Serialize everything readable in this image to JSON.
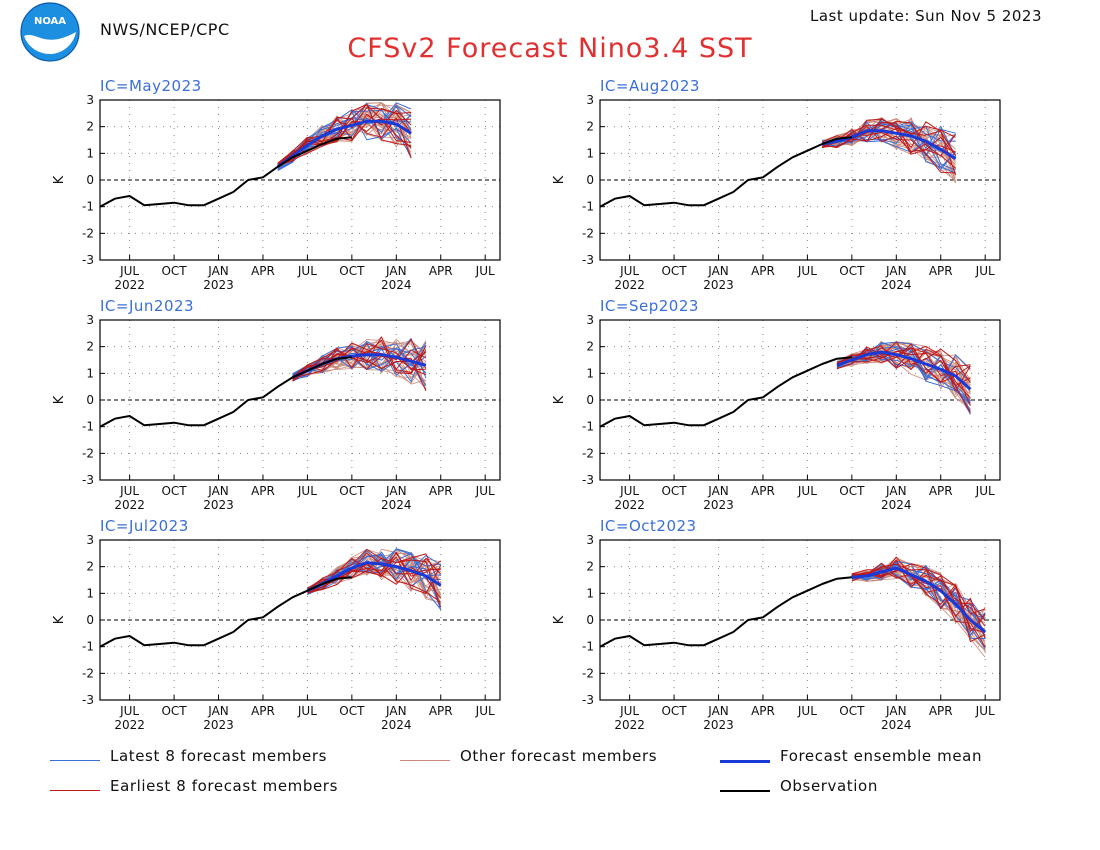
{
  "header": {
    "agency": "NWS/NCEP/CPC",
    "updated": "Last update: Sun Nov 5 2023",
    "title": "CFSv2 Forecast Nino3.4 SST",
    "logo_text": "NOAA"
  },
  "legend": [
    {
      "label": "Latest 8 forecast members",
      "color": "#3a6fd8"
    },
    {
      "label": "Other forecast members",
      "color": "#c98a7a"
    },
    {
      "label": "Forecast ensemble mean",
      "color": "#1a3ad8"
    },
    {
      "label": "Earliest 8 forecast members",
      "color": "#c01818"
    },
    {
      "label": "Observation",
      "color": "#000000"
    }
  ],
  "colors": {
    "title": "#e03030",
    "panel_label": "#3a6fd8",
    "latest": "#3a6fd8",
    "other": "#c98a7a",
    "mean": "#1a3ad8",
    "earliest": "#c01818",
    "observation": "#000000"
  },
  "chart_data": [
    {
      "type": "line",
      "panel_label": "IC=May2023",
      "ylabel": "K",
      "ylim": [
        -3,
        3
      ],
      "y_ticks": [
        "3",
        "2",
        "1",
        "0",
        "-1",
        "-2",
        "-3"
      ],
      "x_ticks": [
        {
          "month": "JUL",
          "year": "2022"
        },
        {
          "month": "OCT",
          "year": ""
        },
        {
          "month": "JAN",
          "year": "2023"
        },
        {
          "month": "APR",
          "year": ""
        },
        {
          "month": "JUL",
          "year": ""
        },
        {
          "month": "OCT",
          "year": ""
        },
        {
          "month": "JAN",
          "year": "2024"
        },
        {
          "month": "APR",
          "year": ""
        },
        {
          "month": "JUL",
          "year": ""
        }
      ],
      "xlim": [
        "2022-05",
        "2024-08"
      ],
      "grid": true,
      "observation": {
        "x": [
          "2022-05",
          "2022-06",
          "2022-07",
          "2022-08",
          "2022-09",
          "2022-10",
          "2022-11",
          "2022-12",
          "2023-01",
          "2023-02",
          "2023-03",
          "2023-04",
          "2023-05",
          "2023-06",
          "2023-07",
          "2023-08",
          "2023-09",
          "2023-10"
        ],
        "y": [
          -1.0,
          -0.7,
          -0.6,
          -0.95,
          -0.9,
          -0.85,
          -0.95,
          -0.95,
          -0.7,
          -0.45,
          0.0,
          0.1,
          0.5,
          0.85,
          1.1,
          1.35,
          1.55,
          1.6
        ]
      },
      "ensemble_mean": {
        "x": [
          "2023-05",
          "2023-06",
          "2023-07",
          "2023-08",
          "2023-09",
          "2023-10",
          "2023-11",
          "2023-12",
          "2024-01",
          "2024-02"
        ],
        "y": [
          0.5,
          0.9,
          1.3,
          1.65,
          1.9,
          2.05,
          2.2,
          2.2,
          2.1,
          1.75
        ]
      }
    },
    {
      "type": "line",
      "panel_label": "IC=Aug2023",
      "ylabel": "K",
      "ylim": [
        -3,
        3
      ],
      "y_ticks": [
        "3",
        "2",
        "1",
        "0",
        "-1",
        "-2",
        "-3"
      ],
      "x_ticks": [
        {
          "month": "JUL",
          "year": "2022"
        },
        {
          "month": "OCT",
          "year": ""
        },
        {
          "month": "JAN",
          "year": "2023"
        },
        {
          "month": "APR",
          "year": ""
        },
        {
          "month": "JUL",
          "year": ""
        },
        {
          "month": "OCT",
          "year": ""
        },
        {
          "month": "JAN",
          "year": "2024"
        },
        {
          "month": "APR",
          "year": ""
        },
        {
          "month": "JUL",
          "year": ""
        }
      ],
      "xlim": [
        "2022-05",
        "2024-08"
      ],
      "grid": true,
      "observation": {
        "x": [
          "2022-05",
          "2022-06",
          "2022-07",
          "2022-08",
          "2022-09",
          "2022-10",
          "2022-11",
          "2022-12",
          "2023-01",
          "2023-02",
          "2023-03",
          "2023-04",
          "2023-05",
          "2023-06",
          "2023-07",
          "2023-08",
          "2023-09",
          "2023-10"
        ],
        "y": [
          -1.0,
          -0.7,
          -0.6,
          -0.95,
          -0.9,
          -0.85,
          -0.95,
          -0.95,
          -0.7,
          -0.45,
          0.0,
          0.1,
          0.5,
          0.85,
          1.1,
          1.35,
          1.55,
          1.6
        ]
      },
      "ensemble_mean": {
        "x": [
          "2023-08",
          "2023-09",
          "2023-10",
          "2023-11",
          "2023-12",
          "2024-01",
          "2024-02",
          "2024-03",
          "2024-04",
          "2024-05"
        ],
        "y": [
          1.35,
          1.45,
          1.6,
          1.85,
          1.85,
          1.75,
          1.65,
          1.45,
          1.15,
          0.8
        ]
      }
    },
    {
      "type": "line",
      "panel_label": "IC=Jun2023",
      "ylabel": "K",
      "ylim": [
        -3,
        3
      ],
      "y_ticks": [
        "3",
        "2",
        "1",
        "0",
        "-1",
        "-2",
        "-3"
      ],
      "x_ticks": [
        {
          "month": "JUL",
          "year": "2022"
        },
        {
          "month": "OCT",
          "year": ""
        },
        {
          "month": "JAN",
          "year": "2023"
        },
        {
          "month": "APR",
          "year": ""
        },
        {
          "month": "JUL",
          "year": ""
        },
        {
          "month": "OCT",
          "year": ""
        },
        {
          "month": "JAN",
          "year": "2024"
        },
        {
          "month": "APR",
          "year": ""
        },
        {
          "month": "JUL",
          "year": ""
        }
      ],
      "xlim": [
        "2022-05",
        "2024-08"
      ],
      "grid": true,
      "observation": {
        "x": [
          "2022-05",
          "2022-06",
          "2022-07",
          "2022-08",
          "2022-09",
          "2022-10",
          "2022-11",
          "2022-12",
          "2023-01",
          "2023-02",
          "2023-03",
          "2023-04",
          "2023-05",
          "2023-06",
          "2023-07",
          "2023-08",
          "2023-09",
          "2023-10"
        ],
        "y": [
          -1.0,
          -0.7,
          -0.6,
          -0.95,
          -0.9,
          -0.85,
          -0.95,
          -0.95,
          -0.7,
          -0.45,
          0.0,
          0.1,
          0.5,
          0.85,
          1.1,
          1.35,
          1.55,
          1.6
        ]
      },
      "ensemble_mean": {
        "x": [
          "2023-06",
          "2023-07",
          "2023-08",
          "2023-09",
          "2023-10",
          "2023-11",
          "2023-12",
          "2024-01",
          "2024-02",
          "2024-03"
        ],
        "y": [
          0.85,
          1.1,
          1.35,
          1.55,
          1.65,
          1.7,
          1.7,
          1.6,
          1.45,
          1.3
        ]
      }
    },
    {
      "type": "line",
      "panel_label": "IC=Sep2023",
      "ylabel": "K",
      "ylim": [
        -3,
        3
      ],
      "y_ticks": [
        "3",
        "2",
        "1",
        "0",
        "-1",
        "-2",
        "-3"
      ],
      "x_ticks": [
        {
          "month": "JUL",
          "year": "2022"
        },
        {
          "month": "OCT",
          "year": ""
        },
        {
          "month": "JAN",
          "year": "2023"
        },
        {
          "month": "APR",
          "year": ""
        },
        {
          "month": "JUL",
          "year": ""
        },
        {
          "month": "OCT",
          "year": ""
        },
        {
          "month": "JAN",
          "year": "2024"
        },
        {
          "month": "APR",
          "year": ""
        },
        {
          "month": "JUL",
          "year": ""
        }
      ],
      "xlim": [
        "2022-05",
        "2024-08"
      ],
      "grid": true,
      "observation": {
        "x": [
          "2022-05",
          "2022-06",
          "2022-07",
          "2022-08",
          "2022-09",
          "2022-10",
          "2022-11",
          "2022-12",
          "2023-01",
          "2023-02",
          "2023-03",
          "2023-04",
          "2023-05",
          "2023-06",
          "2023-07",
          "2023-08",
          "2023-09",
          "2023-10"
        ],
        "y": [
          -1.0,
          -0.7,
          -0.6,
          -0.95,
          -0.9,
          -0.85,
          -0.95,
          -0.95,
          -0.7,
          -0.45,
          0.0,
          0.1,
          0.5,
          0.85,
          1.1,
          1.35,
          1.55,
          1.6
        ]
      },
      "ensemble_mean": {
        "x": [
          "2023-09",
          "2023-10",
          "2023-11",
          "2023-12",
          "2024-01",
          "2024-02",
          "2024-03",
          "2024-04",
          "2024-05",
          "2024-06"
        ],
        "y": [
          1.3,
          1.5,
          1.7,
          1.8,
          1.7,
          1.55,
          1.35,
          1.15,
          0.9,
          0.4
        ]
      }
    },
    {
      "type": "line",
      "panel_label": "IC=Jul2023",
      "ylabel": "K",
      "ylim": [
        -3,
        3
      ],
      "y_ticks": [
        "3",
        "2",
        "1",
        "0",
        "-1",
        "-2",
        "-3"
      ],
      "x_ticks": [
        {
          "month": "JUL",
          "year": "2022"
        },
        {
          "month": "OCT",
          "year": ""
        },
        {
          "month": "JAN",
          "year": "2023"
        },
        {
          "month": "APR",
          "year": ""
        },
        {
          "month": "JUL",
          "year": ""
        },
        {
          "month": "OCT",
          "year": ""
        },
        {
          "month": "JAN",
          "year": "2024"
        },
        {
          "month": "APR",
          "year": ""
        },
        {
          "month": "JUL",
          "year": ""
        }
      ],
      "xlim": [
        "2022-05",
        "2024-08"
      ],
      "grid": true,
      "observation": {
        "x": [
          "2022-05",
          "2022-06",
          "2022-07",
          "2022-08",
          "2022-09",
          "2022-10",
          "2022-11",
          "2022-12",
          "2023-01",
          "2023-02",
          "2023-03",
          "2023-04",
          "2023-05",
          "2023-06",
          "2023-07",
          "2023-08",
          "2023-09",
          "2023-10"
        ],
        "y": [
          -1.0,
          -0.7,
          -0.6,
          -0.95,
          -0.9,
          -0.85,
          -0.95,
          -0.95,
          -0.7,
          -0.45,
          0.0,
          0.1,
          0.5,
          0.85,
          1.1,
          1.35,
          1.55,
          1.6
        ]
      },
      "ensemble_mean": {
        "x": [
          "2023-07",
          "2023-08",
          "2023-09",
          "2023-10",
          "2023-11",
          "2023-12",
          "2024-01",
          "2024-02",
          "2024-03",
          "2024-04"
        ],
        "y": [
          1.1,
          1.35,
          1.65,
          1.95,
          2.15,
          2.1,
          2.0,
          1.85,
          1.65,
          1.3
        ]
      }
    },
    {
      "type": "line",
      "panel_label": "IC=Oct2023",
      "ylabel": "K",
      "ylim": [
        -3,
        3
      ],
      "y_ticks": [
        "3",
        "2",
        "1",
        "0",
        "-1",
        "-2",
        "-3"
      ],
      "x_ticks": [
        {
          "month": "JUL",
          "year": "2022"
        },
        {
          "month": "OCT",
          "year": ""
        },
        {
          "month": "JAN",
          "year": "2023"
        },
        {
          "month": "APR",
          "year": ""
        },
        {
          "month": "JUL",
          "year": ""
        },
        {
          "month": "OCT",
          "year": ""
        },
        {
          "month": "JAN",
          "year": "2024"
        },
        {
          "month": "APR",
          "year": ""
        },
        {
          "month": "JUL",
          "year": ""
        }
      ],
      "xlim": [
        "2022-05",
        "2024-08"
      ],
      "grid": true,
      "observation": {
        "x": [
          "2022-05",
          "2022-06",
          "2022-07",
          "2022-08",
          "2022-09",
          "2022-10",
          "2022-11",
          "2022-12",
          "2023-01",
          "2023-02",
          "2023-03",
          "2023-04",
          "2023-05",
          "2023-06",
          "2023-07",
          "2023-08",
          "2023-09",
          "2023-10"
        ],
        "y": [
          -1.0,
          -0.7,
          -0.6,
          -0.95,
          -0.9,
          -0.85,
          -0.95,
          -0.95,
          -0.7,
          -0.45,
          0.0,
          0.1,
          0.5,
          0.85,
          1.1,
          1.35,
          1.55,
          1.6
        ]
      },
      "ensemble_mean": {
        "x": [
          "2023-10",
          "2023-11",
          "2023-12",
          "2024-01",
          "2024-02",
          "2024-03",
          "2024-04",
          "2024-05",
          "2024-06",
          "2024-07"
        ],
        "y": [
          1.6,
          1.65,
          1.8,
          1.95,
          1.7,
          1.45,
          1.1,
          0.6,
          0.0,
          -0.45
        ]
      }
    }
  ]
}
